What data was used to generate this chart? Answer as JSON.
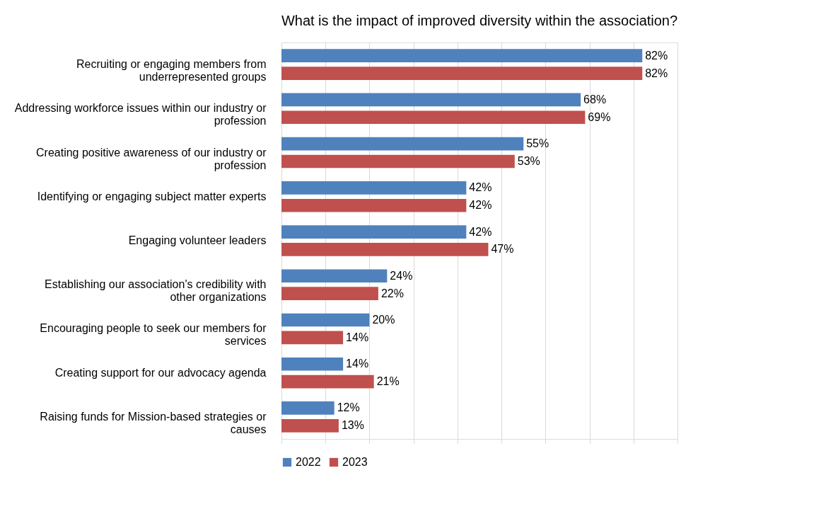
{
  "chart_data": {
    "type": "bar",
    "orientation": "horizontal",
    "title": "What is the impact of improved diversity within the association?",
    "categories": [
      "Recruiting or engaging members from underrepresented groups",
      "Addressing workforce issues within our industry or profession",
      "Creating positive awareness of our industry or profession",
      "Identifying or engaging subject matter experts",
      "Engaging volunteer leaders",
      "Establishing our association's credibility with other organizations",
      "Encouraging people to seek our members for services",
      "Creating support for our advocacy agenda",
      "Raising funds for Mission-based strategies or causes"
    ],
    "series": [
      {
        "name": "2022",
        "color": "#4f81bd",
        "values": [
          82,
          68,
          55,
          42,
          42,
          24,
          20,
          14,
          12
        ],
        "value_labels": [
          "82%",
          "68%",
          "55%",
          "42%",
          "42%",
          "24%",
          "20%",
          "14%",
          "12%"
        ]
      },
      {
        "name": "2023",
        "color": "#c0504d",
        "values": [
          82,
          69,
          53,
          42,
          47,
          22,
          14,
          21,
          13
        ],
        "value_labels": [
          "82%",
          "69%",
          "53%",
          "42%",
          "47%",
          "22%",
          "14%",
          "21%",
          "13%"
        ]
      }
    ],
    "xlim": [
      0,
      90
    ],
    "xticks": [
      {
        "value": 0,
        "label": null
      },
      {
        "value": 10,
        "label": null
      },
      {
        "value": 20,
        "label": null
      },
      {
        "value": 30,
        "label": null
      },
      {
        "value": 40,
        "label": null
      },
      {
        "value": 50,
        "label": null
      },
      {
        "value": 60,
        "label": null
      },
      {
        "value": 70,
        "label": null
      },
      {
        "value": 80,
        "label": null
      },
      {
        "value": 90,
        "label": null
      }
    ],
    "grid": "x",
    "legend": "bottom",
    "tick_labels": "y"
  }
}
